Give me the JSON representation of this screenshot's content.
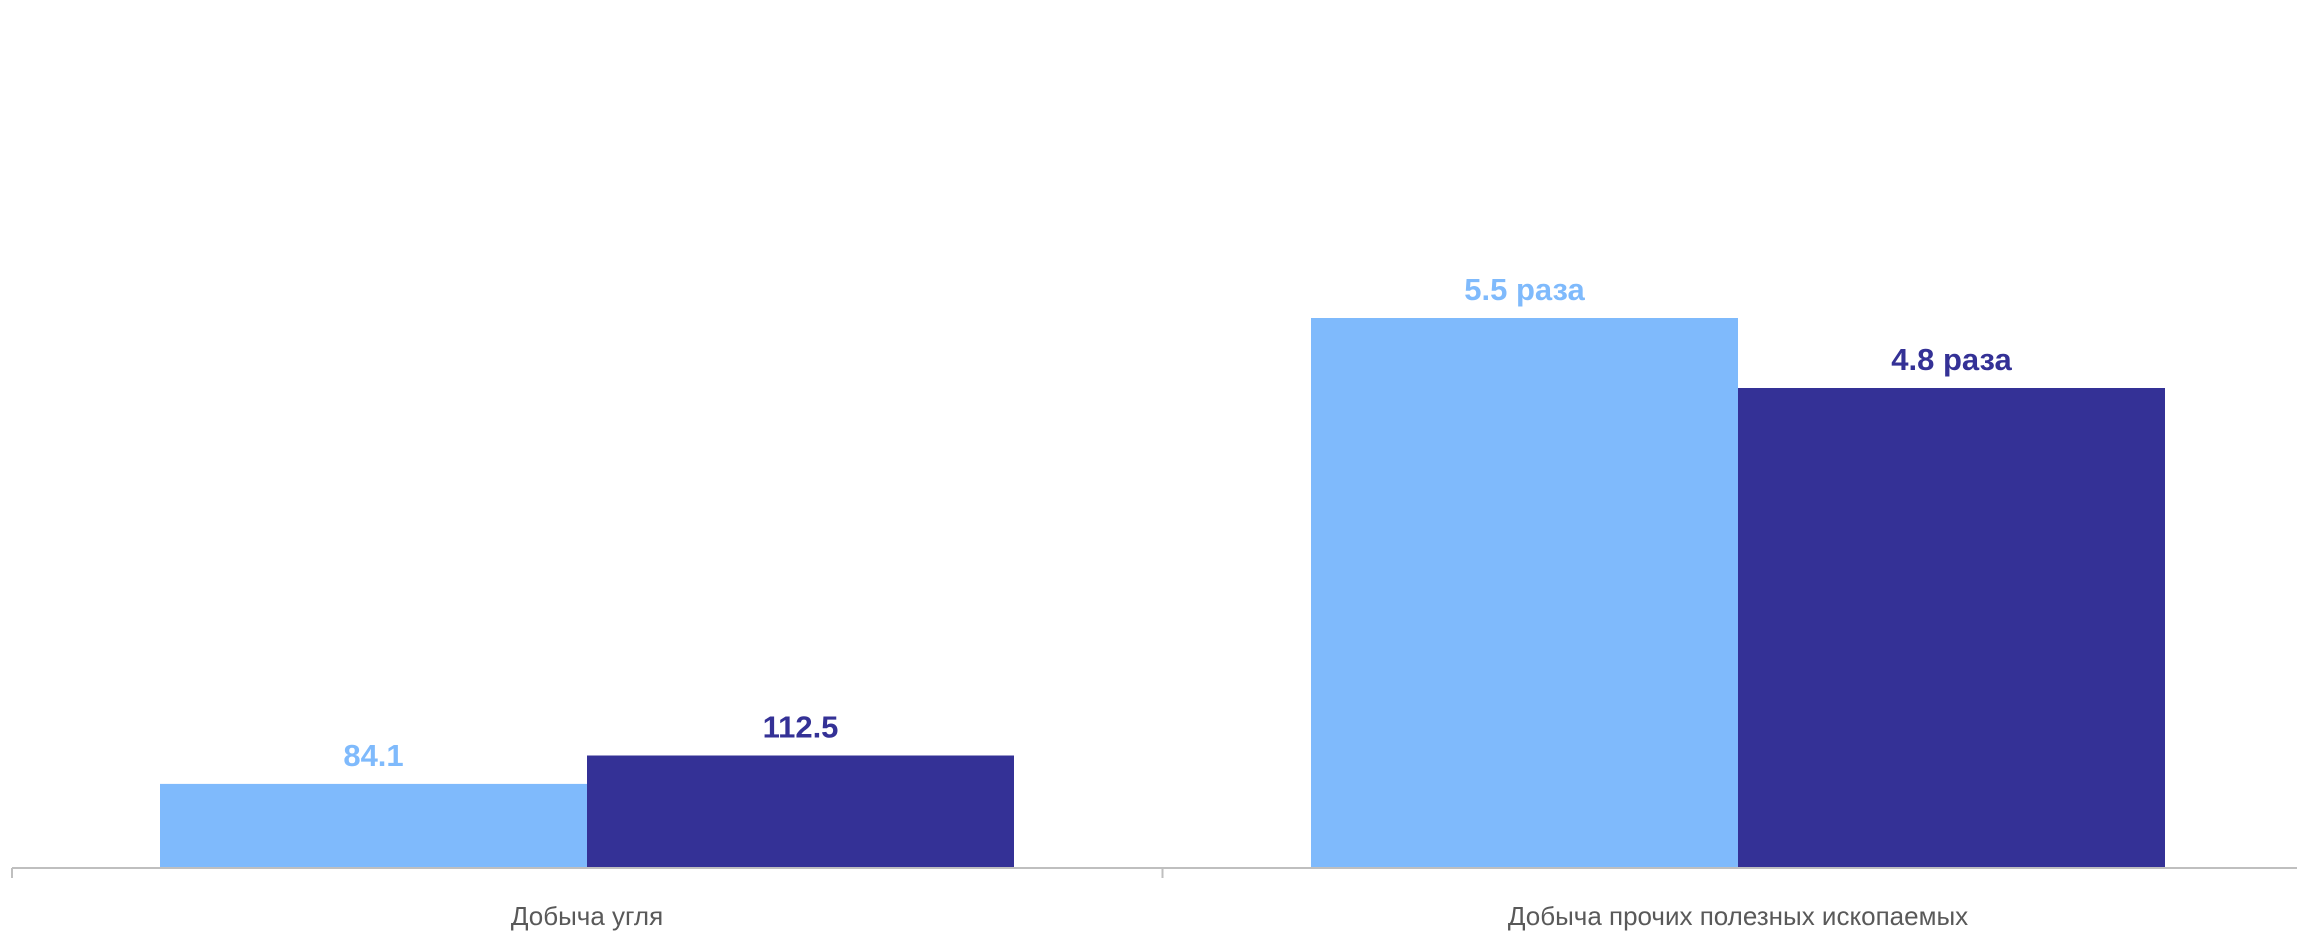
{
  "chart_data": {
    "type": "bar",
    "categories": [
      "Добыча угля",
      "Добыча прочих полезных ископаемых"
    ],
    "series": [
      {
        "values": [
          84.1,
          550
        ],
        "labels": [
          "84.1",
          "5.5 раза"
        ],
        "color": "#7FBAFC"
      },
      {
        "values": [
          112.5,
          480
        ],
        "labels": [
          "112.5",
          "4.8 раза"
        ],
        "color": "#343196"
      }
    ],
    "ylim": [
      0,
      580
    ],
    "grid": false,
    "legend": "none",
    "axis_color": "#BFBFBF",
    "category_label_color": "#595959"
  }
}
